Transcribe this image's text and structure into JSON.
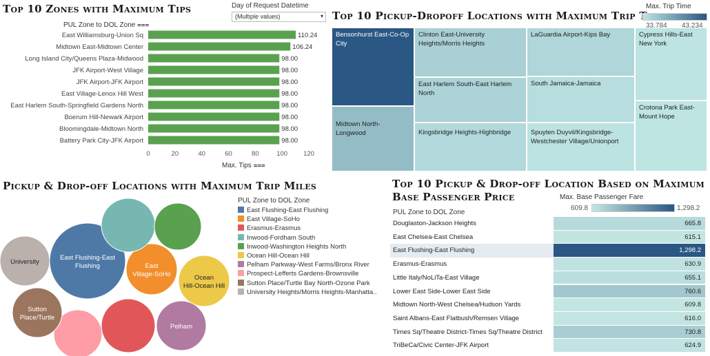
{
  "filter": {
    "label": "Day of Request Datetime",
    "value": "(Multiple values)"
  },
  "tips": {
    "title": "Top 10 Zones with Maximum Tips",
    "row_header": "PUL Zone to DOL Zone",
    "x_axis_label": "Max. Tips",
    "bar_color": "#59a14f",
    "chart_data": {
      "type": "bar",
      "orientation": "horizontal",
      "categories": [
        "East Williamsburg-Union Sq",
        "Midtown East-Midtown Center",
        "Long Island City/Queens Plaza-Midwood",
        "JFK Airport-West Village",
        "JFK Airport-JFK Airport",
        "East Village-Lenox Hill West",
        "East Harlem South-Springfield Gardens North",
        "Boerum Hill-Newark Airport",
        "Bloomingdale-Midtown North",
        "Battery Park City-JFK Airport"
      ],
      "values": [
        110.24,
        106.24,
        98.0,
        98.0,
        98.0,
        98.0,
        98.0,
        98.0,
        98.0,
        98.0
      ],
      "value_labels": [
        "110.24",
        "106.24",
        "98.00",
        "98.00",
        "98.00",
        "98.00",
        "98.00",
        "98.00",
        "98.00",
        "98.00"
      ],
      "xlim": [
        0,
        120
      ],
      "ticks": [
        "0",
        "20",
        "40",
        "60",
        "80",
        "100",
        "120"
      ]
    }
  },
  "treemap": {
    "title": "Top 10 Pickup-Dropoff Locations with Maximum Trip Time",
    "legend_title": "Max. Trip Time",
    "legend_min": "33,784",
    "legend_max": "43,234",
    "color_light": "#bfe5e3",
    "color_dark": "#2a5783",
    "chart_data": {
      "type": "treemap",
      "items": [
        {
          "name": "Bensonhurst East-Co-Op City",
          "value": 43234
        },
        {
          "name": "Midtown North-Longwood",
          "value": 36500
        },
        {
          "name": "Clinton East-University Heights/Morris Heights",
          "value": 35200
        },
        {
          "name": "East Harlem South-East Harlem North",
          "value": 35000
        },
        {
          "name": "Kingsbridge Heights-Highbridge",
          "value": 34600
        },
        {
          "name": "LaGuardia Airport-Kips Bay",
          "value": 34800
        },
        {
          "name": "South Jamaica-Jamaica",
          "value": 34300
        },
        {
          "name": "Spuyten Duyvil/Kingsbridge-Westchester Village/Unionport",
          "value": 34000
        },
        {
          "name": "Cypress Hills-East New York",
          "value": 33900
        },
        {
          "name": "Crotona Park East-Mount Hope",
          "value": 33784
        }
      ]
    }
  },
  "bubbles": {
    "title": "Pickup & Drop-off Locations with Maximum Trip Miles",
    "legend_title": "PUL Zone to DOL Zone",
    "chart_data": {
      "type": "bubble",
      "items": [
        {
          "name": "East Flushing-East Flushing",
          "label": "East Flushing-East Flushing",
          "color": "#4e79a7"
        },
        {
          "name": "East Village-SoHo",
          "label": "East Village-SoHo",
          "color": "#f28e2b"
        },
        {
          "name": "Erasmus-Erasmus",
          "label": "",
          "color": "#e15759"
        },
        {
          "name": "Inwood-Fordham South",
          "label": "",
          "color": "#76b7b2"
        },
        {
          "name": "Inwood-Washington Heights North",
          "label": "",
          "color": "#59a14f"
        },
        {
          "name": "Ocean Hill-Ocean Hill",
          "label": "Ocean Hill-Ocean Hill",
          "color": "#edc948"
        },
        {
          "name": "Pelham Parkway-West Farms/Bronx River",
          "label": "Pelham",
          "color": "#b07aa1"
        },
        {
          "name": "Prospect-Lefferts Gardens-Brownsville",
          "label": "",
          "color": "#ff9da7"
        },
        {
          "name": "Sutton Place/Turtle Bay North-Ozone Park",
          "label": "Sutton Place/Turtle",
          "color": "#9c755f"
        },
        {
          "name": "University Heights/Morris Heights-Manhatta..",
          "label": "University",
          "color": "#bab0ac"
        }
      ]
    }
  },
  "price": {
    "title_line1": "Top 10 Pickup & Drop-off Location Based on Maximum",
    "title_line2": "Base Passenger Price",
    "row_header": "PUL Zone to DOL Zone",
    "legend_title": "Max. Base Passenger Fare",
    "legend_min": "609.8",
    "legend_max": "1,298.2",
    "color_light": "#c4e6e3",
    "color_dark": "#2a5783",
    "chart_data": {
      "type": "table",
      "rows": [
        {
          "name": "Douglaston-Jackson Heights",
          "value": 665.8,
          "label": "665.8"
        },
        {
          "name": "East Chelsea-East Chelsea",
          "value": 615.1,
          "label": "615.1"
        },
        {
          "name": "East Flushing-East Flushing",
          "value": 1298.2,
          "label": "1,298.2"
        },
        {
          "name": "Erasmus-Erasmus",
          "value": 630.9,
          "label": "630.9"
        },
        {
          "name": "Little Italy/NoLiTa-East Village",
          "value": 655.1,
          "label": "655.1"
        },
        {
          "name": "Lower East Side-Lower East Side",
          "value": 760.6,
          "label": "760.6"
        },
        {
          "name": "Midtown North-West Chelsea/Hudson Yards",
          "value": 609.8,
          "label": "609.8"
        },
        {
          "name": "Saint Albans-East Flatbush/Remsen Village",
          "value": 616.0,
          "label": "616.0"
        },
        {
          "name": "Times Sq/Theatre District-Times Sq/Theatre District",
          "value": 730.8,
          "label": "730.8"
        },
        {
          "name": "TriBeCa/Civic Center-JFK Airport",
          "value": 624.9,
          "label": "624.9"
        }
      ]
    }
  }
}
